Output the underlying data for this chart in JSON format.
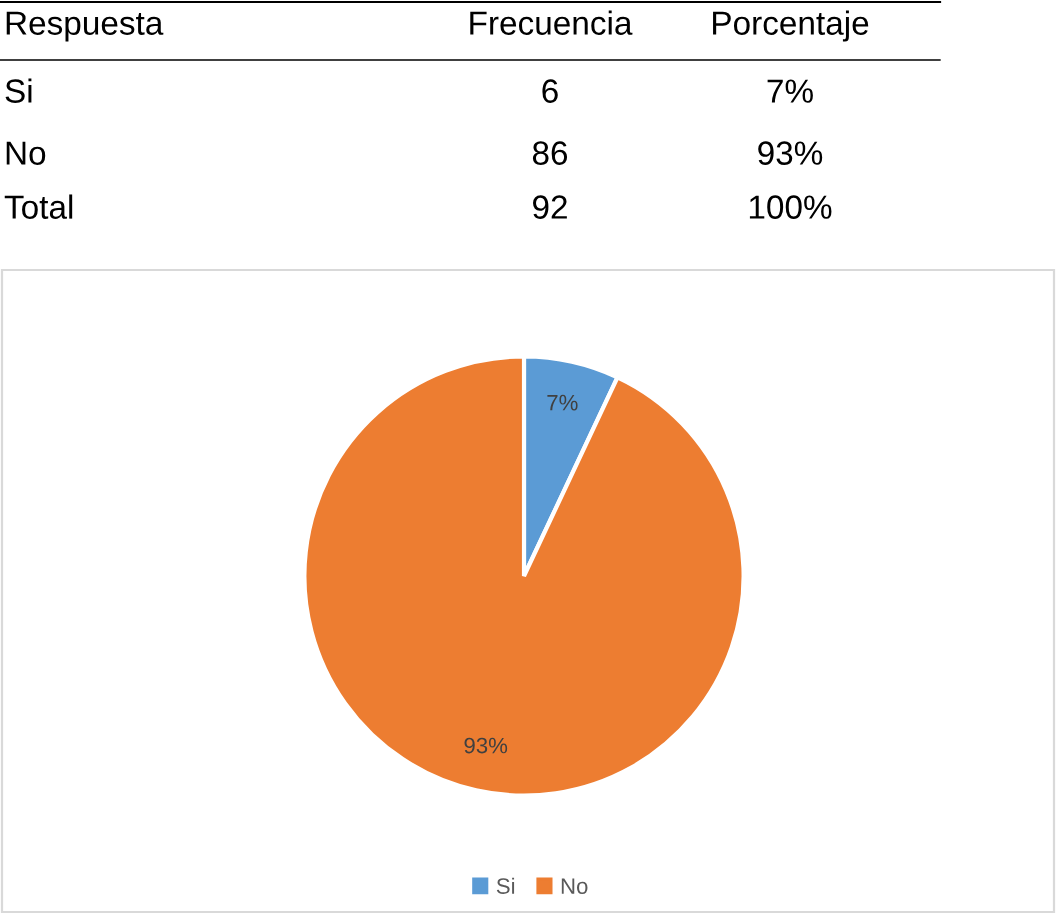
{
  "chart_data": {
    "type": "pie",
    "categories": [
      "Si",
      "No"
    ],
    "values": [
      7,
      93
    ],
    "value_labels": [
      "7%",
      "93%"
    ],
    "colors": [
      "#5b9bd5",
      "#ed7d31"
    ],
    "legend": "bottom",
    "annotations": [
      "Respuesta",
      "Frecuencia",
      "Porcentaje",
      "Si",
      "6",
      "7%",
      "No",
      "86",
      "93%",
      "Total",
      "92",
      "100%"
    ]
  }
}
